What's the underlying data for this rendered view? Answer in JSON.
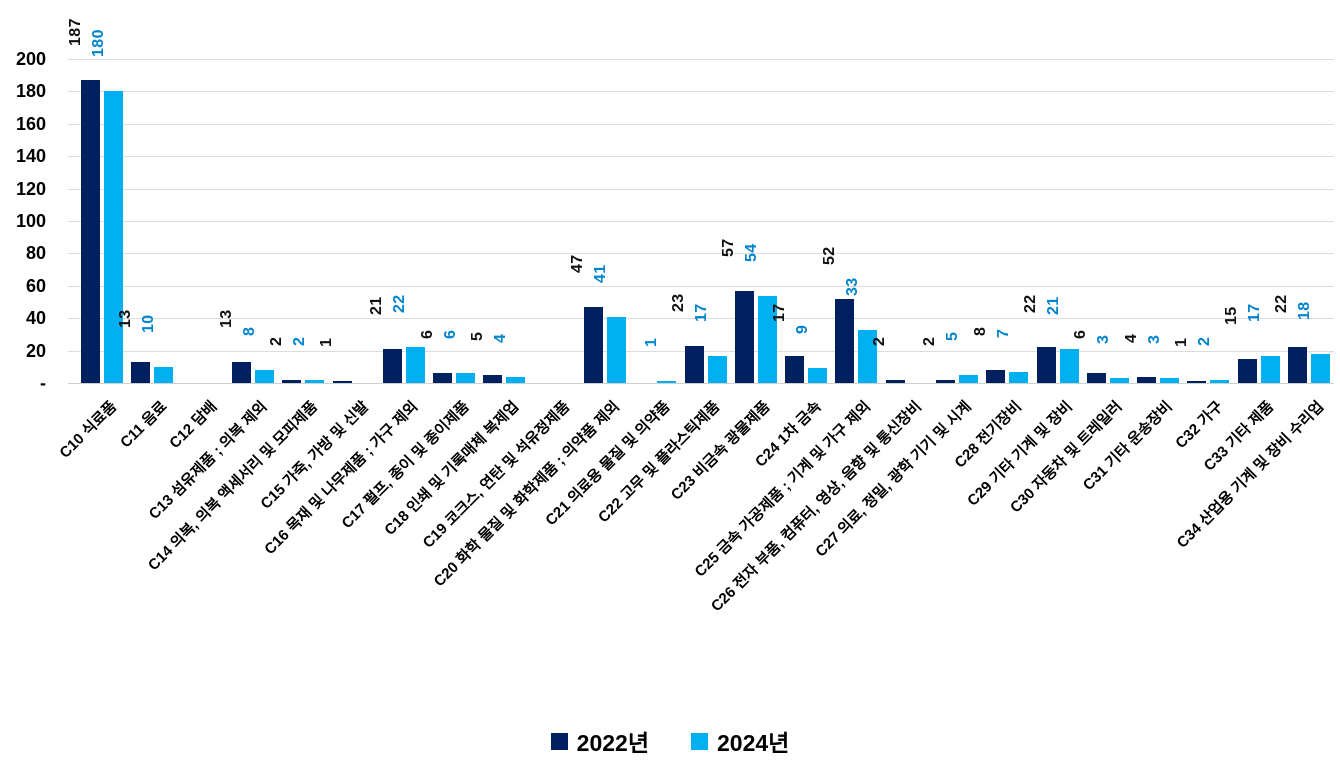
{
  "chart_data": {
    "type": "bar",
    "title": "",
    "xlabel": "",
    "ylabel": "",
    "ylim": [
      0,
      200
    ],
    "ytick_step": 20,
    "yticks_top_to_bottom": [
      "200",
      "180",
      "160",
      "140",
      "120",
      "100",
      "80",
      "60",
      "40",
      "20",
      "-"
    ],
    "grid": true,
    "legend_position": "bottom",
    "categories": [
      "C10 식료품",
      "C11 음료",
      "C12 담배",
      "C13 섬유제품 ; 의복 제외",
      "C14 의복, 의복 액세서리 및 모피제품",
      "C15 가죽, 가방 및 신발",
      "C16 목재 및 나무제품 ; 가구 제외",
      "C17 펄프, 종이 및 종이제품",
      "C18 인쇄 및 기록매체 복제업",
      "C19 코크스, 연탄 및 석유정제품",
      "C20 화학 물질 및 화학제품 ; 의약품 제외",
      "C21 의료용 물질 및 의약품",
      "C22 고무 및 플라스틱제품",
      "C23 비금속 광물제품",
      "C24 1차 금속",
      "C25 금속 가공제품 ; 기계 및 가구 제외",
      "C26 전자 부품, 컴퓨터, 영상, 음향 및 통신장비",
      "C27 의료, 정밀, 광학 기기 및 시계",
      "C28 전기장비",
      "C29 기타 기계 및 장비",
      "C30 자동차 및 트레일러",
      "C31 기타 운송장비",
      "C32 가구",
      "C33 기타 제품",
      "C34 산업용 기계 및 장비 수리업"
    ],
    "series": [
      {
        "name": "2022년",
        "color": "#002060",
        "label_color": "#111111",
        "values": [
          187,
          13,
          null,
          13,
          2,
          1,
          21,
          6,
          5,
          null,
          47,
          null,
          23,
          57,
          17,
          52,
          2,
          2,
          8,
          22,
          6,
          4,
          1,
          15,
          22
        ]
      },
      {
        "name": "2024년",
        "color": "#00B0F0",
        "label_color": "#0084CC",
        "values": [
          180,
          10,
          null,
          8,
          2,
          null,
          22,
          6,
          4,
          null,
          41,
          1,
          17,
          54,
          9,
          33,
          null,
          5,
          7,
          21,
          3,
          3,
          2,
          17,
          18
        ]
      }
    ]
  },
  "legend": {
    "items": [
      {
        "label": "2022년",
        "color": "#002060"
      },
      {
        "label": "2024년",
        "color": "#00B0F0"
      }
    ]
  },
  "colors": {
    "background": "#ffffff",
    "gridline": "#dcdcdc",
    "axis_line": "#d0d0d0",
    "tick_label": "#000000"
  }
}
